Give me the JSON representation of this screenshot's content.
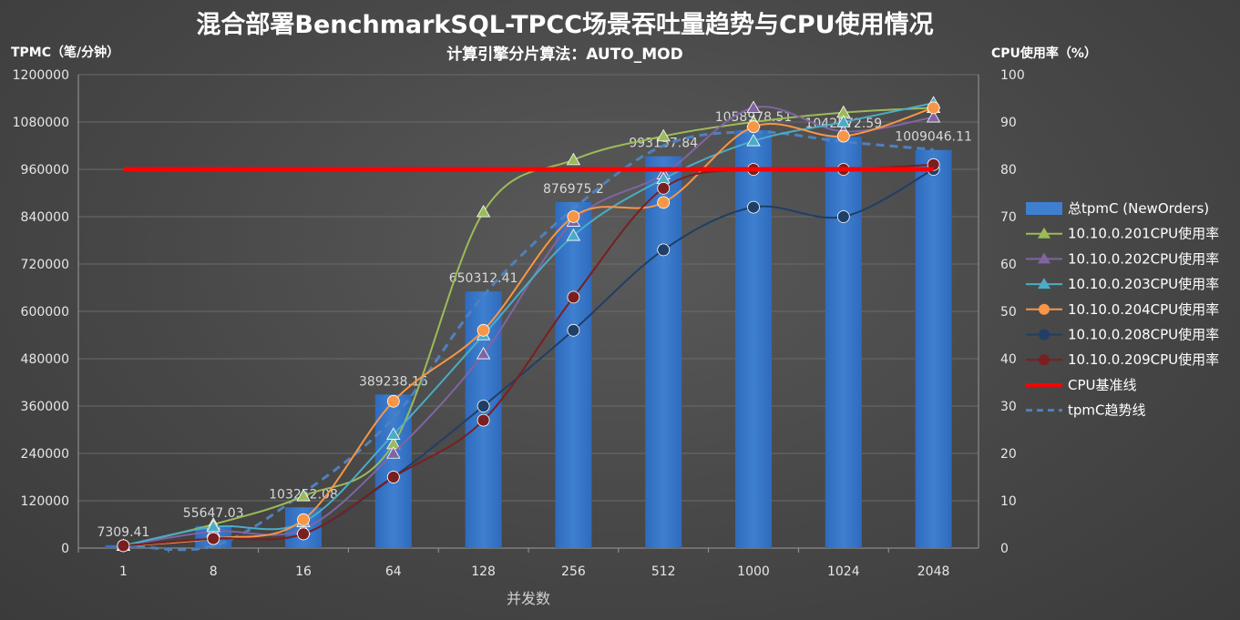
{
  "chart_data": {
    "type": "bar",
    "title": "混合部署BenchmarkSQL-TPCC场景吞吐量趋势与CPU使用情况",
    "subtitle": "计算引擎分片算法：AUTO_MOD",
    "xlabel": "并发数",
    "ylabel": "TPMC（笔/分钟）",
    "y2label": "CPU使用率（%）",
    "categories": [
      "1",
      "8",
      "16",
      "64",
      "128",
      "256",
      "512",
      "1000",
      "1024",
      "2048"
    ],
    "ylim": [
      0,
      1200000
    ],
    "yticks": [
      "0",
      "120000",
      "240000",
      "360000",
      "480000",
      "600000",
      "720000",
      "840000",
      "960000",
      "1080000",
      "1200000"
    ],
    "y2lim": [
      0,
      100
    ],
    "y2ticks": [
      "0",
      "10",
      "20",
      "30",
      "40",
      "50",
      "60",
      "70",
      "80",
      "90",
      "100"
    ],
    "grid": true,
    "legend_position": "right",
    "bar_series": {
      "name": "总tpmC (NewOrders)",
      "color": "#3f7fd0",
      "values": [
        7309.41,
        55647.03,
        103252.08,
        389238.16,
        650312.41,
        876975.2,
        993157.84,
        1058978.51,
        1042572.59,
        1009046.11
      ],
      "labels": [
        "7309.41",
        "55647.03",
        "103252.08",
        "389238.16",
        "650312.41",
        "876975.2",
        "993157.84",
        "1058978.51",
        "1042572.59",
        "1009046.11"
      ]
    },
    "series": [
      {
        "name": "10.10.0.201CPU使用率",
        "color": "#9bbb59",
        "marker": "triangle",
        "values": [
          0.5,
          5,
          11,
          22,
          71,
          82,
          87,
          90,
          92,
          93
        ]
      },
      {
        "name": "10.10.0.202CPU使用率",
        "color": "#8064a2",
        "marker": "triangle",
        "values": [
          0.5,
          3.5,
          4,
          20,
          41,
          69,
          79,
          93,
          88,
          91
        ]
      },
      {
        "name": "10.10.0.203CPU使用率",
        "color": "#4bacc6",
        "marker": "triangle",
        "values": [
          0.5,
          4.5,
          5.5,
          24,
          45,
          66,
          78,
          86,
          90,
          94
        ]
      },
      {
        "name": "10.10.0.204CPU使用率",
        "color": "#f79646",
        "marker": "circle",
        "values": [
          0.5,
          2,
          6,
          31,
          46,
          70,
          73,
          89,
          87,
          93
        ]
      },
      {
        "name": "10.10.0.208CPU使用率",
        "color": "#1f3f66",
        "marker": "circle",
        "values": [
          0.5,
          2,
          3,
          15,
          30,
          46,
          63,
          72,
          70,
          80
        ]
      },
      {
        "name": "10.10.0.209CPU使用率",
        "color": "#7a1f1f",
        "marker": "circle",
        "values": [
          0.5,
          2,
          3,
          15,
          27,
          53,
          76,
          80,
          80,
          81
        ]
      }
    ],
    "baseline": {
      "name": "CPU基准线",
      "color": "#ff0000",
      "value": 80
    },
    "trendline": {
      "name": "tpmC趋势线",
      "color": "#4f81bd",
      "values": [
        8000,
        5000,
        140000,
        330000,
        640000,
        860000,
        1020000,
        1055000,
        1030000,
        1010000
      ]
    }
  }
}
